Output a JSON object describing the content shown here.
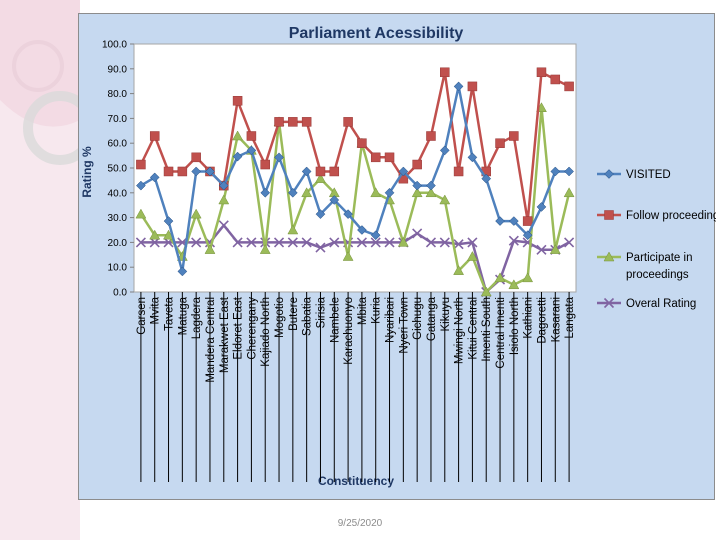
{
  "chart_data": {
    "type": "line",
    "title": "Parliament Acessibility",
    "xlabel": "Constituency",
    "ylabel": "Rating %",
    "ylim": [
      0,
      100
    ],
    "yticks": [
      "0.0",
      "10.0",
      "20.0",
      "30.0",
      "40.0",
      "50.0",
      "60.0",
      "70.0",
      "80.0",
      "90.0",
      "100.0"
    ],
    "grid": false,
    "legend_position": "right",
    "categories": [
      "Garsen",
      "Mvita",
      "Taveta",
      "Matuga",
      "Lagdera",
      "Mandera Central",
      "Marakwet East",
      "Eldoret East",
      "Cherengany",
      "Kajiado North",
      "Mogotio",
      "Butere",
      "Sabatia",
      "Sirisia",
      "Nambele",
      "Karachuonyo",
      "Mbita",
      "Kuria",
      "Nyaribari",
      "Nyeri Town",
      "Gichugu",
      "Gatanga",
      "Kikuyu",
      "Mwingi North",
      "Kitui Central",
      "Imenti South",
      "Central Imenti",
      "Isiolo North",
      "Kathiani",
      "Dagoretti",
      "Kasarani",
      "Langata"
    ],
    "series": [
      {
        "name": "VISITED",
        "color": "#4f81bd",
        "marker": "diamond",
        "values": [
          42.9,
          46.2,
          28.6,
          8.3,
          48.6,
          48.6,
          42.9,
          54.6,
          57.1,
          40.0,
          54.3,
          40.0,
          48.6,
          31.4,
          37.1,
          31.4,
          25.0,
          22.9,
          40.0,
          48.6,
          42.9,
          42.9,
          57.1,
          82.9,
          54.3,
          45.7,
          28.6,
          28.6,
          22.9,
          34.3,
          48.6,
          48.6
        ]
      },
      {
        "name": "Follow proceedings",
        "color": "#c0504d",
        "marker": "square",
        "values": [
          51.4,
          62.9,
          48.6,
          48.6,
          54.3,
          48.6,
          42.9,
          77.1,
          62.9,
          51.4,
          68.6,
          68.6,
          68.6,
          48.6,
          48.6,
          68.6,
          60.0,
          54.3,
          54.3,
          45.7,
          51.4,
          62.9,
          88.6,
          48.6,
          82.9,
          48.6,
          60.0,
          62.9,
          28.6,
          88.6,
          85.7,
          82.9
        ]
      },
      {
        "name": "Participate in proceedings",
        "color": "#9bbb59",
        "marker": "triangle",
        "values": [
          31.4,
          22.9,
          22.9,
          14.3,
          31.4,
          17.1,
          37.1,
          62.9,
          57.1,
          17.1,
          68.6,
          25.0,
          40.0,
          45.7,
          40.0,
          14.3,
          60.0,
          40.0,
          37.1,
          20.0,
          40.0,
          40.0,
          37.1,
          8.6,
          14.3,
          0.0,
          5.7,
          2.9,
          5.7,
          74.3,
          17.1,
          40.0
        ]
      },
      {
        "name": "Overal Rating",
        "color": "#8064a2",
        "marker": "x",
        "values": [
          20.0,
          20.0,
          20.0,
          20.0,
          20.0,
          20.0,
          26.9,
          20.0,
          20.0,
          20.0,
          20.0,
          20.0,
          20.0,
          17.9,
          20.0,
          20.0,
          20.0,
          20.0,
          20.0,
          20.0,
          23.6,
          20.0,
          20.0,
          19.3,
          20.0,
          0.0,
          5.0,
          20.7,
          20.0,
          17.0,
          17.0,
          20.0
        ]
      }
    ]
  },
  "footer": {
    "date": "9/25/2020"
  }
}
